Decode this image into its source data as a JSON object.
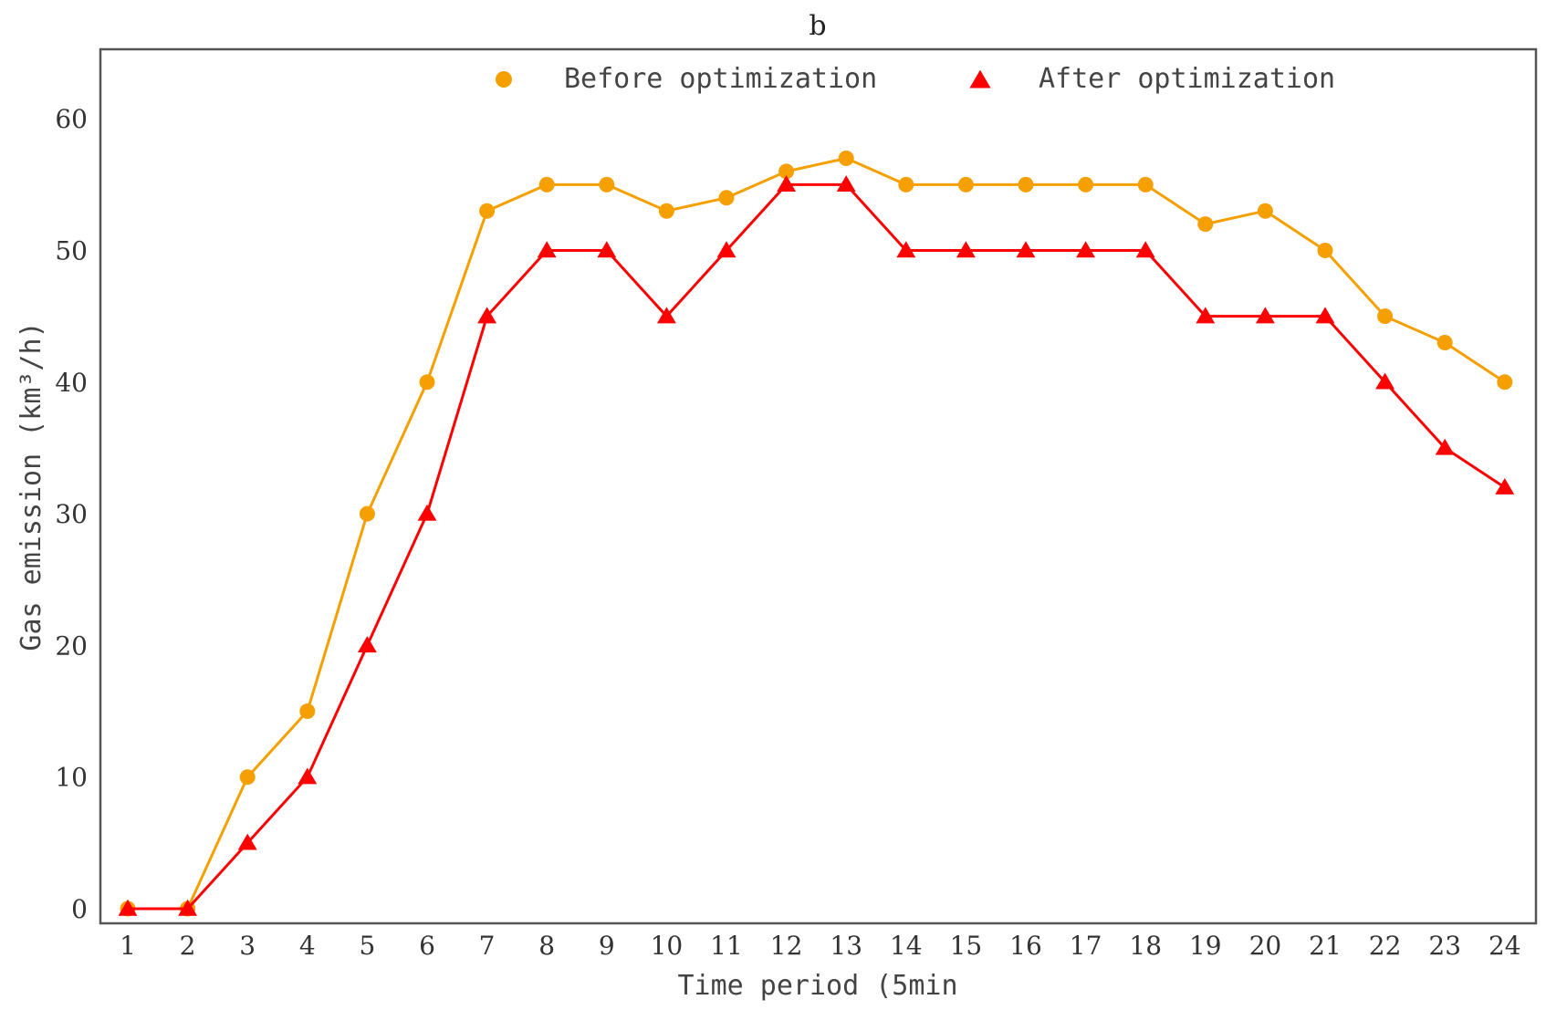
{
  "chart_data": {
    "type": "line",
    "title": "b",
    "xlabel": "Time period (5min",
    "ylabel": "Gas emission (km³/h)",
    "categories": [
      "1",
      "2",
      "3",
      "4",
      "5",
      "6",
      "7",
      "8",
      "9",
      "10",
      "11",
      "12",
      "13",
      "14",
      "15",
      "16",
      "17",
      "18",
      "19",
      "20",
      "21",
      "22",
      "23",
      "24"
    ],
    "yticks": [
      "0",
      "10",
      "20",
      "30",
      "40",
      "50",
      "60"
    ],
    "ylim": [
      -1,
      65
    ],
    "grid": false,
    "legend_position": "top",
    "series": [
      {
        "name": "Before optimization",
        "marker": "circle",
        "color": "#F5A000",
        "values": [
          0,
          0,
          10,
          15,
          30,
          40,
          53,
          55,
          55,
          53,
          54,
          56,
          57,
          55,
          55,
          55,
          55,
          55,
          52,
          53,
          50,
          45,
          43,
          40
        ]
      },
      {
        "name": "After optimization",
        "marker": "triangle",
        "color": "#FF0000",
        "values": [
          0,
          0,
          5,
          10,
          20,
          30,
          45,
          50,
          50,
          45,
          50,
          55,
          55,
          50,
          50,
          50,
          50,
          50,
          45,
          45,
          45,
          40,
          35,
          32
        ]
      }
    ]
  }
}
